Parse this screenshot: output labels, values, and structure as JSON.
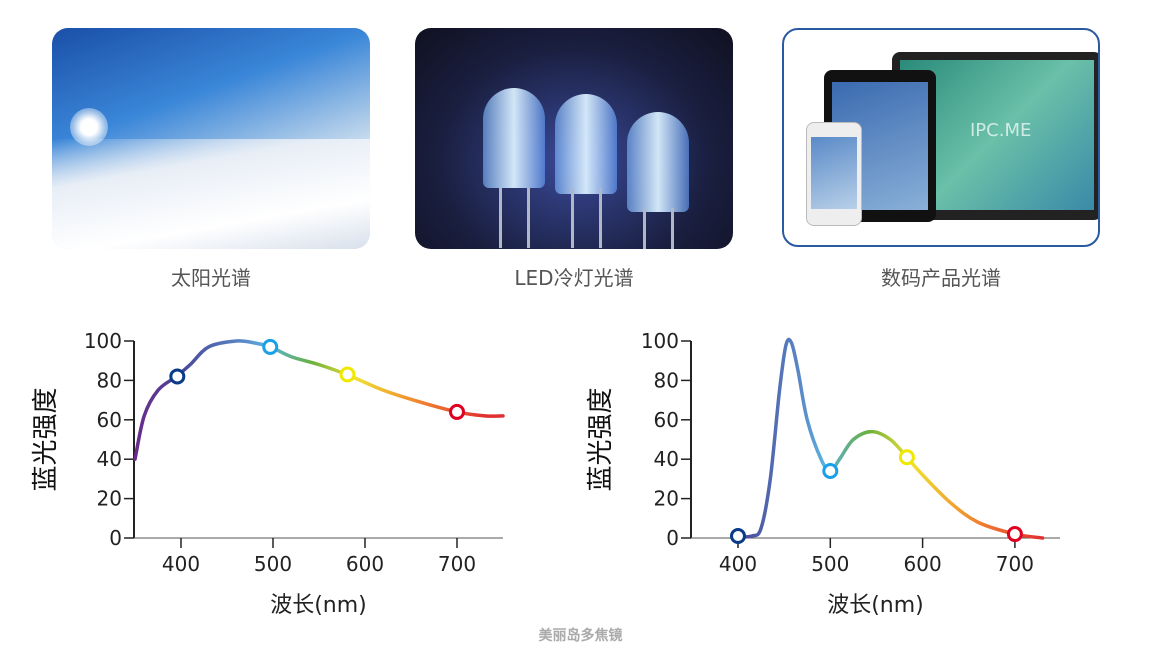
{
  "panels": [
    {
      "caption": "太阳光谱",
      "icon": "sun-snow-mountain-photo"
    },
    {
      "caption": "LED冷灯光谱",
      "icon": "blue-led-photo"
    },
    {
      "caption": "数码产品光谱",
      "icon": "digital-devices-photo",
      "screen_text": "IPC.ME"
    }
  ],
  "chart_data": [
    {
      "type": "line",
      "xlabel": "波长(nm)",
      "ylabel": "蓝光强度",
      "xlim": [
        349,
        750
      ],
      "ylim": [
        0,
        100
      ],
      "xticks": [
        "400",
        "500",
        "600",
        "700"
      ],
      "yticks": [
        "0",
        "20",
        "40",
        "60",
        "80",
        "100"
      ],
      "x": [
        350,
        360,
        375,
        395,
        410,
        430,
        460,
        480,
        497,
        520,
        550,
        580,
        620,
        660,
        700,
        730,
        750
      ],
      "y": [
        40,
        62,
        75,
        82,
        88,
        97,
        100,
        99,
        97,
        92,
        88,
        83,
        75,
        69,
        64,
        62,
        62
      ],
      "markers": [
        {
          "x": 396,
          "y": 82,
          "color": "#0a3a8a"
        },
        {
          "x": 497,
          "y": 97,
          "color": "#1aa0e8"
        },
        {
          "x": 581,
          "y": 83,
          "color": "#f0e800"
        },
        {
          "x": 700,
          "y": 64,
          "color": "#e00020"
        }
      ]
    },
    {
      "type": "line",
      "xlabel": "波长(nm)",
      "ylabel": "蓝光强度",
      "xlim": [
        349,
        750
      ],
      "ylim": [
        0,
        100
      ],
      "xticks": [
        "400",
        "500",
        "600",
        "700"
      ],
      "yticks": [
        "0",
        "20",
        "40",
        "60",
        "80",
        "100"
      ],
      "x": [
        400,
        415,
        425,
        435,
        445,
        452,
        458,
        465,
        475,
        490,
        500,
        510,
        525,
        545,
        565,
        583,
        600,
        630,
        660,
        700,
        730
      ],
      "y": [
        0.5,
        1,
        5,
        30,
        75,
        98,
        99,
        85,
        60,
        40,
        34,
        40,
        50,
        54,
        50,
        41,
        32,
        18,
        8,
        2,
        0
      ],
      "markers": [
        {
          "x": 400,
          "y": 1,
          "color": "#0a3a8a"
        },
        {
          "x": 500,
          "y": 34,
          "color": "#1aa0e8"
        },
        {
          "x": 583,
          "y": 41,
          "color": "#f0e800"
        },
        {
          "x": 700,
          "y": 2,
          "color": "#e00020"
        }
      ]
    }
  ],
  "watermark": "美丽岛多焦镜"
}
